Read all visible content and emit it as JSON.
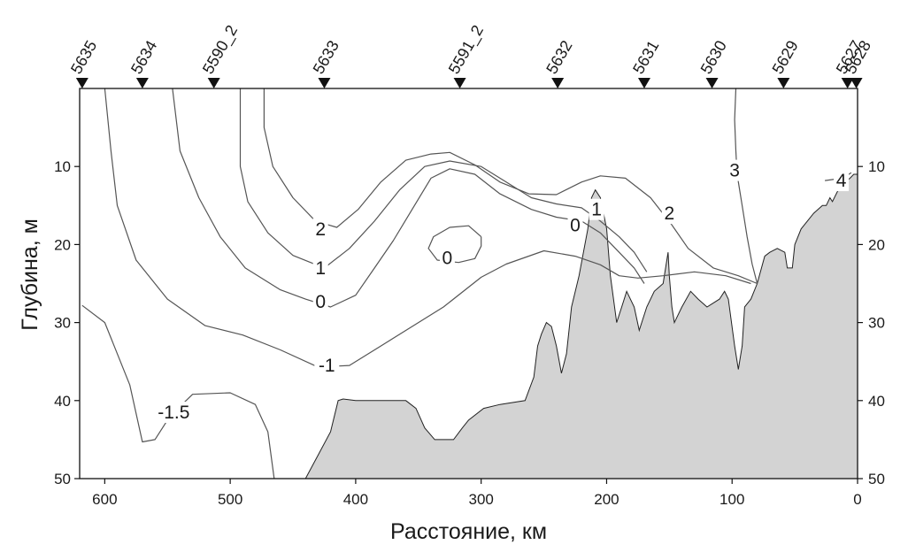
{
  "chart_data": {
    "type": "contour",
    "xlabel": "Расстояние, км",
    "ylabel": "Глубина, м",
    "xlim": [
      620,
      0
    ],
    "ylim": [
      0,
      50
    ],
    "x_ticks": [
      600,
      500,
      400,
      300,
      200,
      100,
      0
    ],
    "y_ticks": [
      10,
      20,
      30,
      40,
      50
    ],
    "y_ticks_right": [
      10,
      20,
      30,
      40,
      50
    ],
    "grid": false,
    "colors": {
      "seabed": "#d3d3d3",
      "line": "#555555",
      "axis": "#111111"
    },
    "stations": [
      {
        "name": "5635",
        "km": 618
      },
      {
        "name": "5634",
        "km": 570
      },
      {
        "name": "5590_2",
        "km": 513
      },
      {
        "name": "5633",
        "km": 425
      },
      {
        "name": "5591_2",
        "km": 317
      },
      {
        "name": "5632",
        "km": 239
      },
      {
        "name": "5631",
        "km": 170
      },
      {
        "name": "5630",
        "km": 116
      },
      {
        "name": "5629",
        "km": 59
      },
      {
        "name": "5627",
        "km": 8
      },
      {
        "name": "5628",
        "km": 1
      }
    ],
    "contours": [
      {
        "level": "-1.5",
        "points": [
          [
            618,
            27.8
          ],
          [
            600,
            30
          ],
          [
            580,
            38
          ],
          [
            570,
            45.3
          ],
          [
            560,
            45
          ],
          [
            548,
            42
          ],
          [
            530,
            39.2
          ],
          [
            500,
            39
          ],
          [
            480,
            40.5
          ],
          [
            470,
            44
          ],
          [
            465,
            50
          ]
        ]
      },
      {
        "level": "-1",
        "points": [
          [
            600,
            0
          ],
          [
            595,
            8
          ],
          [
            590,
            15
          ],
          [
            575,
            22
          ],
          [
            550,
            27
          ],
          [
            520,
            30.4
          ],
          [
            490,
            31.6
          ],
          [
            460,
            33.5
          ],
          [
            430,
            35.7
          ],
          [
            405,
            35.5
          ],
          [
            380,
            33
          ],
          [
            350,
            30
          ],
          [
            330,
            28
          ],
          [
            300,
            24.2
          ],
          [
            280,
            22.5
          ],
          [
            250,
            20.8
          ],
          [
            225,
            21.5
          ],
          [
            205,
            22.6
          ],
          [
            190,
            24
          ],
          [
            175,
            24.3
          ],
          [
            155,
            24
          ],
          [
            130,
            23.5
          ],
          [
            105,
            24
          ],
          [
            85,
            25
          ]
        ]
      },
      {
        "level": "0",
        "points": [
          [
            546,
            0
          ],
          [
            540,
            8
          ],
          [
            525,
            14
          ],
          [
            508,
            19
          ],
          [
            488,
            23
          ],
          [
            460,
            25.8
          ],
          [
            440,
            27
          ],
          [
            420,
            28
          ],
          [
            400,
            26.5
          ],
          [
            385,
            23
          ],
          [
            370,
            19.5
          ],
          [
            355,
            15.5
          ],
          [
            340,
            11.5
          ],
          [
            325,
            10.3
          ],
          [
            305,
            11
          ],
          [
            285,
            13.5
          ],
          [
            260,
            15.5
          ],
          [
            240,
            16.5
          ],
          [
            220,
            17
          ],
          [
            205,
            18.5
          ],
          [
            190,
            21
          ],
          [
            178,
            23
          ],
          [
            170,
            25
          ]
        ]
      },
      {
        "level": "0",
        "points": [
          [
            300,
            19
          ],
          [
            310,
            17.6
          ],
          [
            325,
            17.8
          ],
          [
            338,
            19
          ],
          [
            342,
            20.5
          ],
          [
            335,
            22
          ],
          [
            318,
            22.3
          ],
          [
            305,
            21.8
          ],
          [
            300,
            20.2
          ],
          [
            300,
            19
          ]
        ]
      },
      {
        "level": "1",
        "points": [
          [
            492,
            0
          ],
          [
            492,
            10
          ],
          [
            486,
            14.5
          ],
          [
            470,
            18.5
          ],
          [
            450,
            21.4
          ],
          [
            425,
            23
          ],
          [
            405,
            20.5
          ],
          [
            385,
            17
          ],
          [
            365,
            13
          ],
          [
            345,
            10
          ],
          [
            325,
            9.3
          ],
          [
            300,
            10
          ],
          [
            280,
            12
          ],
          [
            260,
            14
          ],
          [
            240,
            14.8
          ],
          [
            220,
            15.3
          ],
          [
            205,
            17
          ],
          [
            190,
            19
          ],
          [
            178,
            21
          ],
          [
            168,
            23.5
          ]
        ]
      },
      {
        "level": "2",
        "points": [
          [
            473,
            0
          ],
          [
            473,
            5
          ],
          [
            466,
            10
          ],
          [
            450,
            14
          ],
          [
            432,
            17
          ],
          [
            415,
            17.8
          ],
          [
            398,
            15.5
          ],
          [
            380,
            12
          ],
          [
            360,
            9.2
          ],
          [
            340,
            8.4
          ],
          [
            325,
            8.2
          ],
          [
            305,
            9.8
          ],
          [
            285,
            12
          ],
          [
            262,
            13.5
          ],
          [
            240,
            13.6
          ],
          [
            220,
            12
          ],
          [
            205,
            11.2
          ],
          [
            185,
            11.5
          ],
          [
            165,
            14
          ],
          [
            148,
            17.5
          ],
          [
            135,
            20.5
          ],
          [
            115,
            23
          ],
          [
            95,
            24
          ],
          [
            80,
            25
          ]
        ]
      },
      {
        "level": "3",
        "points": [
          [
            97,
            0
          ],
          [
            98,
            4
          ],
          [
            97,
            8
          ],
          [
            96,
            11
          ],
          [
            92,
            15
          ],
          [
            88,
            19
          ],
          [
            84,
            22.5
          ],
          [
            80,
            25
          ]
        ]
      },
      {
        "level": "4",
        "points": [
          [
            26,
            11.8
          ],
          [
            12,
            11.5
          ],
          [
            5,
            10.8
          ]
        ]
      }
    ],
    "contour_labels": [
      {
        "text": "-1.5",
        "km": 545,
        "depth": 41.5
      },
      {
        "text": "-1",
        "km": 423,
        "depth": 35.5
      },
      {
        "text": "0",
        "km": 428,
        "depth": 27.3
      },
      {
        "text": "1",
        "km": 428,
        "depth": 23.0
      },
      {
        "text": "2",
        "km": 428,
        "depth": 18.0
      },
      {
        "text": "0",
        "km": 327,
        "depth": 21.7
      },
      {
        "text": "0",
        "km": 225,
        "depth": 17.5
      },
      {
        "text": "1",
        "km": 208,
        "depth": 15.5
      },
      {
        "text": "2",
        "km": 150,
        "depth": 16.0
      },
      {
        "text": "3",
        "km": 98,
        "depth": 10.5
      },
      {
        "text": "4",
        "km": 13,
        "depth": 11.8
      }
    ],
    "seabed": [
      [
        440,
        50
      ],
      [
        430,
        47
      ],
      [
        420,
        44
      ],
      [
        414,
        40
      ],
      [
        410,
        39.8
      ],
      [
        400,
        40
      ],
      [
        360,
        40
      ],
      [
        352,
        41
      ],
      [
        345,
        43.5
      ],
      [
        337,
        45
      ],
      [
        322,
        45
      ],
      [
        315,
        43.5
      ],
      [
        310,
        42.5
      ],
      [
        298,
        41
      ],
      [
        285,
        40.5
      ],
      [
        265,
        40
      ],
      [
        258,
        37
      ],
      [
        255,
        33
      ],
      [
        252,
        31.5
      ],
      [
        248,
        30
      ],
      [
        244,
        30.5
      ],
      [
        240,
        33
      ],
      [
        236,
        36.5
      ],
      [
        232,
        34
      ],
      [
        228,
        28
      ],
      [
        222,
        24
      ],
      [
        215,
        18
      ],
      [
        212,
        14
      ],
      [
        209,
        13
      ],
      [
        205,
        14
      ],
      [
        200,
        18
      ],
      [
        197,
        24
      ],
      [
        192,
        30
      ],
      [
        188,
        28
      ],
      [
        184,
        26
      ],
      [
        178,
        28
      ],
      [
        174,
        31
      ],
      [
        168,
        28
      ],
      [
        162,
        26
      ],
      [
        155,
        25
      ],
      [
        152,
        22
      ],
      [
        151,
        21
      ],
      [
        150,
        24
      ],
      [
        148,
        28
      ],
      [
        146,
        30
      ],
      [
        140,
        28
      ],
      [
        133,
        26
      ],
      [
        127,
        27
      ],
      [
        120,
        28
      ],
      [
        110,
        27
      ],
      [
        106,
        26
      ],
      [
        103,
        27
      ],
      [
        98,
        33
      ],
      [
        95,
        36
      ],
      [
        92,
        33
      ],
      [
        90,
        28
      ],
      [
        85,
        27
      ],
      [
        80,
        25
      ],
      [
        74,
        21.5
      ],
      [
        70,
        21
      ],
      [
        64,
        20.5
      ],
      [
        58,
        21
      ],
      [
        56,
        23
      ],
      [
        52,
        23
      ],
      [
        50,
        20
      ],
      [
        45,
        18
      ],
      [
        40,
        17
      ],
      [
        35,
        16
      ],
      [
        28,
        15
      ],
      [
        25,
        15
      ],
      [
        22,
        14
      ],
      [
        20,
        14.5
      ],
      [
        16,
        13.2
      ],
      [
        14,
        12.8
      ],
      [
        10,
        12
      ],
      [
        6,
        11.5
      ],
      [
        3,
        11
      ],
      [
        0,
        11
      ],
      [
        0,
        50
      ]
    ]
  }
}
